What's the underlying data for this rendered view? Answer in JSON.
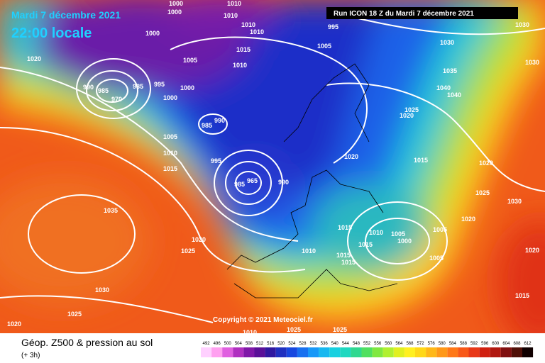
{
  "header": {
    "date": "Mardi 7 décembre 2021",
    "time": "22:00 locale",
    "run": "Run ICON 18 Z du Mardi 7 décembre 2021"
  },
  "isobar_labels": [
    "1000",
    "1000",
    "1010",
    "1010",
    "1010",
    "1010",
    "995",
    "1005",
    "1015",
    "1010",
    "1005",
    "1000",
    "1020",
    "990",
    "985",
    "970",
    "985",
    "995",
    "1000",
    "1000",
    "985",
    "990",
    "1005",
    "1010",
    "1015",
    "995",
    "985",
    "965",
    "990",
    "1020",
    "1025",
    "1020",
    "1015",
    "1040",
    "1040",
    "1035",
    "1030",
    "1030",
    "1030",
    "1020",
    "1025",
    "1030",
    "1020",
    "1035",
    "1025",
    "1020",
    "1015",
    "1010",
    "1005",
    "1000",
    "1015",
    "1005",
    "1005",
    "1010",
    "1015",
    "1015",
    "1030",
    "1025",
    "1020",
    "1015",
    "1020",
    "1010",
    "1025",
    "1025"
  ],
  "copyright": "Copyright © 2021 Meteociel.fr",
  "footer": {
    "title": "Géop. Z500 & pression au sol",
    "step": "(+ 3h)"
  },
  "legend": [
    "492",
    "496",
    "500",
    "504",
    "508",
    "512",
    "516",
    "520",
    "524",
    "528",
    "532",
    "536",
    "540",
    "544",
    "548",
    "552",
    "556",
    "560",
    "564",
    "568",
    "572",
    "576",
    "580",
    "584",
    "588",
    "592",
    "596",
    "600",
    "604",
    "608",
    "612"
  ]
}
